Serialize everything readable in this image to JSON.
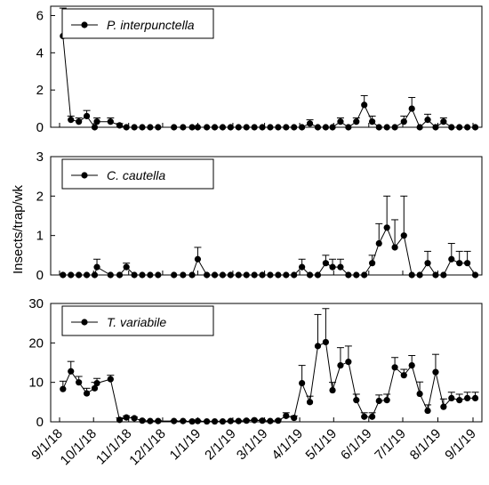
{
  "chart_data": {
    "type": "line",
    "ylabel": "Insects/trap/wk",
    "x_tick_labels": [
      "9/1/18",
      "10/1/18",
      "11/1/18",
      "12/1/18",
      "1/1/19",
      "2/1/19",
      "3/1/19",
      "4/1/19",
      "5/1/19",
      "6/1/19",
      "7/1/19",
      "8/1/19",
      "9/1/19"
    ],
    "x": [
      "2018-09-04",
      "2018-09-11",
      "2018-09-18",
      "2018-09-25",
      "2018-10-02",
      "2018-10-04",
      "2018-10-16",
      "2018-10-24",
      "2018-10-30",
      "2018-11-06",
      "2018-11-13",
      "2018-11-20",
      "2018-11-27",
      "2018-12-11",
      "2018-12-19",
      "2018-12-27",
      "2019-01-01",
      "2019-01-09",
      "2019-01-16",
      "2019-01-23",
      "2019-01-30",
      "2019-02-06",
      "2019-02-13",
      "2019-02-20",
      "2019-02-27",
      "2019-03-06",
      "2019-03-13",
      "2019-03-20",
      "2019-03-27",
      "2019-04-03",
      "2019-04-10",
      "2019-04-17",
      "2019-04-24",
      "2019-04-30",
      "2019-05-07",
      "2019-05-14",
      "2019-05-21",
      "2019-05-28",
      "2019-06-04",
      "2019-06-10",
      "2019-06-17",
      "2019-06-24",
      "2019-07-02",
      "2019-07-09",
      "2019-07-16",
      "2019-07-23",
      "2019-07-30",
      "2019-08-06",
      "2019-08-13",
      "2019-08-20",
      "2019-08-27",
      "2019-09-03"
    ],
    "panels": [
      {
        "series_name": "P. interpunctella",
        "ylim": [
          0,
          6.5
        ],
        "yticks": [
          0,
          2,
          4,
          6
        ],
        "values": [
          4.9,
          0.4,
          0.3,
          0.6,
          0.0,
          0.3,
          0.3,
          0.1,
          0.0,
          0.0,
          0.0,
          0.0,
          0.0,
          0.0,
          0.0,
          0.0,
          0.0,
          0.0,
          0.0,
          0.0,
          0.0,
          0.0,
          0.0,
          0.0,
          0.0,
          0.0,
          0.0,
          0.0,
          0.0,
          0.0,
          0.2,
          0.0,
          0.0,
          0.0,
          0.3,
          0.0,
          0.3,
          1.2,
          0.3,
          0.0,
          0.0,
          0.0,
          0.3,
          1.0,
          0.0,
          0.4,
          0.0,
          0.3,
          0.0,
          0.0,
          0.0,
          0.0
        ],
        "errors": [
          1.5,
          0.2,
          0.2,
          0.3,
          0,
          0.2,
          0.2,
          0.1,
          0,
          0,
          0,
          0,
          0,
          0,
          0,
          0,
          0,
          0,
          0,
          0,
          0,
          0,
          0,
          0,
          0,
          0,
          0,
          0,
          0,
          0,
          0.2,
          0,
          0,
          0,
          0.2,
          0,
          0.2,
          0.5,
          0.3,
          0,
          0,
          0,
          0.3,
          0.6,
          0,
          0.3,
          0,
          0.2,
          0,
          0,
          0,
          0
        ]
      },
      {
        "series_name": "C. cautella",
        "ylim": [
          0,
          3
        ],
        "yticks": [
          0,
          1,
          2,
          3
        ],
        "values": [
          0.0,
          0.0,
          0.0,
          0.0,
          0.0,
          0.2,
          0.0,
          0.0,
          0.2,
          0.0,
          0.0,
          0.0,
          0.0,
          0.0,
          0.0,
          0.0,
          0.4,
          0.0,
          0.0,
          0.0,
          0.0,
          0.0,
          0.0,
          0.0,
          0.0,
          0.0,
          0.0,
          0.0,
          0.0,
          0.2,
          0.0,
          0.0,
          0.3,
          0.2,
          0.2,
          0.0,
          0.0,
          0.0,
          0.3,
          0.8,
          1.2,
          0.7,
          1.0,
          0.0,
          0.0,
          0.3,
          0.0,
          0.0,
          0.4,
          0.3,
          0.3,
          0.0
        ],
        "errors": [
          0,
          0,
          0,
          0,
          0,
          0.2,
          0,
          0,
          0.1,
          0,
          0,
          0,
          0,
          0,
          0,
          0,
          0.3,
          0,
          0,
          0,
          0,
          0,
          0,
          0,
          0,
          0,
          0,
          0,
          0,
          0.2,
          0,
          0,
          0.2,
          0.2,
          0.2,
          0,
          0,
          0,
          0.2,
          0.5,
          0.8,
          0.7,
          1.0,
          0,
          0,
          0.3,
          0,
          0,
          0.4,
          0.3,
          0.3,
          0
        ]
      },
      {
        "series_name": "T. variabile",
        "ylim": [
          0,
          30
        ],
        "yticks": [
          0,
          10,
          20,
          30
        ],
        "values": [
          8.3,
          12.8,
          10.0,
          7.2,
          8.5,
          9.8,
          10.8,
          0.5,
          1.1,
          0.9,
          0.3,
          0.2,
          0.2,
          0.2,
          0.2,
          0.1,
          0.2,
          0.1,
          0.1,
          0.1,
          0.2,
          0.2,
          0.3,
          0.4,
          0.3,
          0.2,
          0.3,
          1.5,
          1.0,
          9.8,
          5.0,
          19.2,
          20.2,
          8.0,
          14.3,
          15.2,
          5.5,
          1.3,
          1.3,
          5.3,
          5.5,
          13.8,
          11.8,
          14.3,
          7.1,
          2.8,
          12.6,
          3.8,
          6.0,
          5.5,
          6.0,
          6.0
        ],
        "errors": [
          2.0,
          2.5,
          1.5,
          1.3,
          1.5,
          1.2,
          1.0,
          0.5,
          0.4,
          0.3,
          0.2,
          0.1,
          0.1,
          0.1,
          0.1,
          0.1,
          0.1,
          0.1,
          0.1,
          0.1,
          0.1,
          0.1,
          0.2,
          0.2,
          0.2,
          0.1,
          0.2,
          0.8,
          0.5,
          4.5,
          1.5,
          8.0,
          8.5,
          2.0,
          4.5,
          4.0,
          1.5,
          1.0,
          1.0,
          1.5,
          1.5,
          2.5,
          1.5,
          2.5,
          3.0,
          1.5,
          4.5,
          2.0,
          1.5,
          1.5,
          1.5,
          1.5
        ]
      }
    ]
  }
}
